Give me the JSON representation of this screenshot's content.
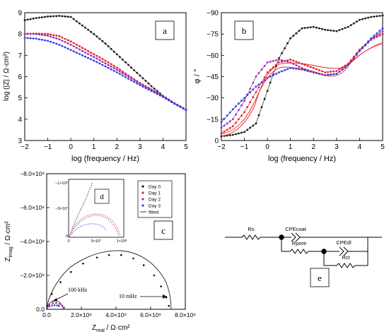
{
  "panels": {
    "a": {
      "label": "a",
      "xlabel": "log (frequency / Hz)",
      "ylabel": "log (|Z| / Ω·cm²)",
      "xlim": [
        -2,
        5
      ],
      "ylim": [
        3,
        9
      ],
      "xticks": [
        "−2",
        "−1",
        "0",
        "1",
        "2",
        "3",
        "4",
        "5"
      ],
      "yticks": [
        "3",
        "4",
        "5",
        "6",
        "7",
        "8",
        "9"
      ]
    },
    "b": {
      "label": "b",
      "xlabel": "log (frequency / Hz)",
      "ylabel": "φ / °",
      "xlim": [
        -2,
        5
      ],
      "ylim": [
        -90,
        0
      ],
      "xticks": [
        "−2",
        "−1",
        "0",
        "1",
        "2",
        "3",
        "4",
        "5"
      ],
      "yticks": [
        "−90",
        "−75",
        "−60",
        "−45",
        "−30",
        "−15",
        "0"
      ]
    },
    "c": {
      "label": "c",
      "xlabel_main": "Z",
      "xlabel_sub": "real",
      "xlabel_unit": " / Ω·cm²",
      "ylabel_main": "Z",
      "ylabel_sub": "imag",
      "ylabel_unit": " / Ω·cm²",
      "xticks": [
        "0.0",
        "2.0×10⁸",
        "4.0×10⁸",
        "6.0×10⁸",
        "8.0×10⁸"
      ],
      "yticks": [
        "0.0",
        "−2.0×10⁸",
        "−4.0×10⁸",
        "−6.0×10⁸",
        "−8.0×10⁸"
      ],
      "annot_high": "100 kHz",
      "annot_low": "10 mHz",
      "legend": [
        "Day 0",
        "Day 1",
        "Day 2",
        "Day 3",
        "fitted"
      ]
    },
    "d": {
      "label": "d",
      "xticks": [
        "0",
        "5×10⁷",
        "1×10⁸"
      ],
      "yticks": [
        "−1×10⁸",
        "−5×10⁷",
        "0"
      ]
    },
    "e": {
      "label": "e",
      "components": [
        "Rs",
        "CPEcoat",
        "Rpore",
        "CPEdl",
        "Rct"
      ]
    }
  },
  "colors": {
    "day0": "#111111",
    "day1": "#e8232a",
    "day2": "#9e2fb0",
    "day3": "#2f3ee6",
    "fit": "#222222"
  },
  "chart_data": [
    {
      "type": "scatter",
      "panel": "a",
      "x_range": [
        -2,
        5
      ],
      "ylim": [
        3,
        9
      ],
      "xlabel": "log (frequency / Hz)",
      "ylabel": "log (|Z| / Ω·cm²)",
      "series": [
        {
          "name": "Day 0",
          "points": [
            [
              -2.0,
              8.65
            ],
            [
              -1.5,
              8.75
            ],
            [
              -1.0,
              8.82
            ],
            [
              -0.5,
              8.85
            ],
            [
              0.0,
              8.8
            ],
            [
              0.5,
              8.4
            ],
            [
              1.0,
              8.0
            ],
            [
              1.5,
              7.55
            ],
            [
              2.0,
              7.05
            ],
            [
              2.5,
              6.55
            ],
            [
              3.0,
              6.05
            ],
            [
              3.5,
              5.55
            ],
            [
              4.0,
              5.1
            ],
            [
              4.5,
              4.75
            ],
            [
              5.0,
              4.45
            ]
          ]
        },
        {
          "name": "Day 1",
          "points": [
            [
              -2.0,
              8.0
            ],
            [
              -1.5,
              8.02
            ],
            [
              -1.0,
              8.0
            ],
            [
              -0.5,
              7.9
            ],
            [
              0.0,
              7.65
            ],
            [
              0.5,
              7.35
            ],
            [
              1.0,
              7.05
            ],
            [
              1.5,
              6.75
            ],
            [
              2.0,
              6.42
            ],
            [
              2.5,
              6.05
            ],
            [
              3.0,
              5.7
            ],
            [
              3.5,
              5.4
            ],
            [
              4.0,
              5.1
            ],
            [
              4.5,
              4.75
            ],
            [
              5.0,
              4.45
            ]
          ]
        },
        {
          "name": "Day 2",
          "points": [
            [
              -2.0,
              8.02
            ],
            [
              -1.5,
              8.0
            ],
            [
              -1.0,
              7.92
            ],
            [
              -0.5,
              7.75
            ],
            [
              0.0,
              7.5
            ],
            [
              0.5,
              7.2
            ],
            [
              1.0,
              6.92
            ],
            [
              1.5,
              6.62
            ],
            [
              2.0,
              6.32
            ],
            [
              2.5,
              6.0
            ],
            [
              3.0,
              5.68
            ],
            [
              3.5,
              5.38
            ],
            [
              4.0,
              5.08
            ],
            [
              4.5,
              4.75
            ],
            [
              5.0,
              4.45
            ]
          ]
        },
        {
          "name": "Day 3",
          "points": [
            [
              -2.0,
              7.82
            ],
            [
              -1.5,
              7.78
            ],
            [
              -1.0,
              7.68
            ],
            [
              -0.5,
              7.5
            ],
            [
              0.0,
              7.25
            ],
            [
              0.5,
              7.0
            ],
            [
              1.0,
              6.75
            ],
            [
              1.5,
              6.48
            ],
            [
              2.0,
              6.2
            ],
            [
              2.5,
              5.9
            ],
            [
              3.0,
              5.6
            ],
            [
              3.5,
              5.32
            ],
            [
              4.0,
              5.05
            ],
            [
              4.5,
              4.72
            ],
            [
              5.0,
              4.43
            ]
          ]
        }
      ]
    },
    {
      "type": "scatter",
      "panel": "b",
      "x_range": [
        -2,
        5
      ],
      "ylim": [
        -90,
        0
      ],
      "xlabel": "log (frequency / Hz)",
      "ylabel": "φ / °",
      "series": [
        {
          "name": "Day 0",
          "points": [
            [
              -2.0,
              -3
            ],
            [
              -1.5,
              -4
            ],
            [
              -1.0,
              -6
            ],
            [
              -0.5,
              -12
            ],
            [
              0.0,
              -35
            ],
            [
              0.5,
              -58
            ],
            [
              1.0,
              -72
            ],
            [
              1.5,
              -79
            ],
            [
              2.0,
              -80
            ],
            [
              2.5,
              -78
            ],
            [
              3.0,
              -77
            ],
            [
              3.5,
              -80
            ],
            [
              4.0,
              -85
            ],
            [
              4.5,
              -87
            ],
            [
              5.0,
              -88
            ]
          ]
        },
        {
          "name": "Day 1",
          "points": [
            [
              -2.0,
              -5
            ],
            [
              -1.5,
              -10
            ],
            [
              -1.0,
              -20
            ],
            [
              -0.5,
              -34
            ],
            [
              0.0,
              -48
            ],
            [
              0.5,
              -55
            ],
            [
              1.0,
              -57
            ],
            [
              1.5,
              -54
            ],
            [
              2.0,
              -51
            ],
            [
              2.5,
              -48
            ],
            [
              3.0,
              -49
            ],
            [
              3.5,
              -54
            ],
            [
              4.0,
              -64
            ],
            [
              4.5,
              -71
            ],
            [
              5.0,
              -75
            ]
          ]
        },
        {
          "name": "Day 2",
          "points": [
            [
              -2.0,
              -9
            ],
            [
              -1.5,
              -15
            ],
            [
              -1.0,
              -28
            ],
            [
              -0.5,
              -45
            ],
            [
              0.0,
              -55
            ],
            [
              0.5,
              -57
            ],
            [
              1.0,
              -55
            ],
            [
              1.5,
              -51
            ],
            [
              2.0,
              -48
            ],
            [
              2.5,
              -46
            ],
            [
              3.0,
              -47
            ],
            [
              3.5,
              -53
            ],
            [
              4.0,
              -63
            ],
            [
              4.5,
              -71
            ],
            [
              5.0,
              -77
            ]
          ]
        },
        {
          "name": "Day 3",
          "points": [
            [
              -2.0,
              -13
            ],
            [
              -1.5,
              -22
            ],
            [
              -1.0,
              -30
            ],
            [
              -0.5,
              -38
            ],
            [
              0.0,
              -44
            ],
            [
              0.5,
              -48
            ],
            [
              1.0,
              -51
            ],
            [
              1.5,
              -50
            ],
            [
              2.0,
              -48
            ],
            [
              2.5,
              -46
            ],
            [
              3.0,
              -47
            ],
            [
              3.5,
              -53
            ],
            [
              4.0,
              -63
            ],
            [
              4.5,
              -72
            ],
            [
              5.0,
              -79
            ]
          ]
        }
      ]
    },
    {
      "type": "scatter",
      "panel": "c",
      "xlim": [
        0,
        800000000.0
      ],
      "ylim": [
        0,
        -800000000.0
      ],
      "series": [
        {
          "name": "Day 0",
          "points": [
            [
              5000000.0,
              -20000000.0
            ],
            [
              30000000.0,
              -90000000.0
            ],
            [
              80000000.0,
              -160000000.0
            ],
            [
              140000000.0,
              -220000000.0
            ],
            [
              210000000.0,
              -270000000.0
            ],
            [
              290000000.0,
              -305000000.0
            ],
            [
              360000000.0,
              -320000000.0
            ],
            [
              430000000.0,
              -320000000.0
            ],
            [
              500000000.0,
              -300000000.0
            ],
            [
              560000000.0,
              -260000000.0
            ],
            [
              620000000.0,
              -200000000.0
            ],
            [
              660000000.0,
              -135000000.0
            ],
            [
              690000000.0,
              -70000000.0
            ],
            [
              705000000.0,
              -20000000.0
            ]
          ]
        },
        {
          "name": "Day 1",
          "points": [
            [
              2000000.0,
              -8000000.0
            ],
            [
              15000000.0,
              -28000000.0
            ],
            [
              35000000.0,
              -36000000.0
            ],
            [
              55000000.0,
              -37000000.0
            ],
            [
              75000000.0,
              -32000000.0
            ],
            [
              90000000.0,
              -22000000.0
            ],
            [
              100000000.0,
              -10000000.0
            ]
          ]
        },
        {
          "name": "Day 2",
          "points": [
            [
              2000000.0,
              -9000000.0
            ],
            [
              15000000.0,
              -30000000.0
            ],
            [
              35000000.0,
              -38000000.0
            ],
            [
              55000000.0,
              -38000000.0
            ],
            [
              75000000.0,
              -32000000.0
            ],
            [
              90000000.0,
              -20000000.0
            ],
            [
              100000000.0,
              -9000000.0
            ]
          ]
        },
        {
          "name": "Day 3",
          "points": [
            [
              2000000.0,
              -6000000.0
            ],
            [
              15000000.0,
              -17000000.0
            ],
            [
              30000000.0,
              -22000000.0
            ],
            [
              45000000.0,
              -24000000.0
            ],
            [
              60000000.0,
              -23000000.0
            ],
            [
              70000000.0,
              -20000000.0
            ]
          ]
        }
      ]
    }
  ]
}
